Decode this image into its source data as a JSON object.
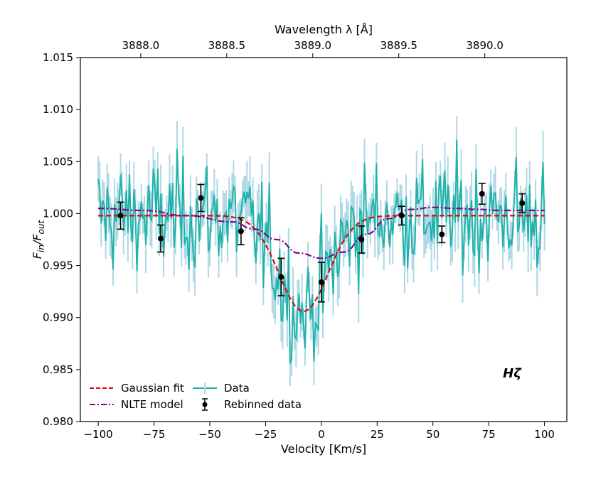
{
  "chart_data": {
    "type": "line",
    "title": "",
    "xlabel": "Velocity [Km/s]",
    "ylabel_main": "F",
    "ylabel_sub1": "in",
    "ylabel_sub2": "out",
    "top_xlabel": "Wavelength λ [Å]",
    "annotation": "Hζ",
    "xlim": [
      -108,
      110
    ],
    "ylim": [
      0.98,
      1.015
    ],
    "x_ticks": [
      -100,
      -75,
      -50,
      -25,
      0,
      25,
      50,
      75,
      100
    ],
    "x_tick_labels": [
      "−100",
      "−75",
      "−50",
      "−25",
      "0",
      "25",
      "50",
      "75",
      "100"
    ],
    "y_ticks": [
      0.98,
      0.985,
      0.99,
      0.995,
      1.0,
      1.005,
      1.01,
      1.015
    ],
    "y_tick_labels": [
      "0.980",
      "0.985",
      "0.990",
      "0.995",
      "1.000",
      "1.005",
      "1.010",
      "1.015"
    ],
    "top_ticks": [
      3888.0,
      3888.5,
      3889.0,
      3889.5,
      3890.0
    ],
    "top_tick_labels": [
      "3888.0",
      "3888.5",
      "3889.0",
      "3889.5",
      "3890.0"
    ],
    "top_axis_reference": {
      "velocity": 0,
      "wavelength": 3889.05,
      "speed_of_light_km_s": 299792.458
    },
    "gaussian_fit": {
      "name": "Gaussian fit",
      "color": "#e8000b",
      "baseline": 0.9998,
      "amplitude": -0.0092,
      "center": -8,
      "sigma": 11
    },
    "nlte_model": {
      "name": "NLTE model",
      "color": "#8b008b",
      "x": [
        -100,
        -80,
        -60,
        -40,
        -30,
        -20,
        -10,
        0,
        10,
        20,
        30,
        40,
        50,
        60,
        70,
        80,
        90,
        100
      ],
      "y": [
        1.0005,
        1.0003,
        0.9998,
        0.9992,
        0.9985,
        0.9975,
        0.9962,
        0.9957,
        0.9963,
        0.998,
        0.9995,
        1.0004,
        1.0006,
        1.0005,
        1.0004,
        1.0003,
        1.0003,
        1.0003
      ]
    },
    "data_series": {
      "name": "Data",
      "color": "#20b2aa",
      "error_color": "#add8e6",
      "x_start": -100,
      "x_end": 100,
      "n_points": 301
    },
    "rebinned": {
      "name": "Rebinned data",
      "color": "#000000",
      "x": [
        -90,
        -72,
        -54,
        -36,
        -18,
        0,
        18,
        36,
        54,
        72,
        90
      ],
      "y": [
        0.9998,
        0.9976,
        1.0015,
        0.9983,
        0.9939,
        0.9934,
        0.9975,
        0.9998,
        0.998,
        1.0019,
        1.001
      ],
      "err": [
        0.0013,
        0.0013,
        0.0013,
        0.0013,
        0.0018,
        0.0019,
        0.0013,
        0.0009,
        0.0008,
        0.001,
        0.0009
      ]
    },
    "legend_location": "lower-left"
  }
}
